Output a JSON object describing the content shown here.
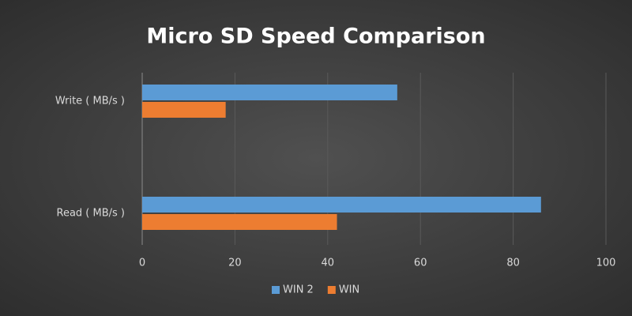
{
  "chart_data": {
    "type": "hbar",
    "title": "Micro SD Speed Comparison",
    "categories": [
      "Write ( MB/s )",
      "Read ( MB/s )"
    ],
    "series": [
      {
        "name": "WIN 2",
        "color": "#5b9bd5",
        "values": [
          55,
          86
        ]
      },
      {
        "name": "WIN",
        "color": "#ed7d31",
        "values": [
          18,
          42
        ]
      }
    ],
    "xlim": [
      0,
      100
    ],
    "xticks": [
      0,
      20,
      40,
      60,
      80,
      100
    ],
    "grid": true,
    "legend": "bottom"
  }
}
